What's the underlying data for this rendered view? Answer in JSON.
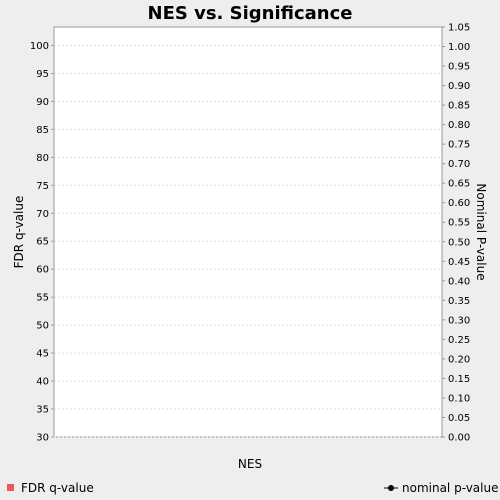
{
  "chart_data": {
    "type": "scatter",
    "title": "NES vs. Significance",
    "xlabel": "NES",
    "ylabel_left": "FDR q-value",
    "ylabel_right": "Nominal P-value",
    "y_left_ticks": [
      "30",
      "35",
      "40",
      "45",
      "50",
      "55",
      "60",
      "65",
      "70",
      "75",
      "80",
      "85",
      "90",
      "95",
      "100"
    ],
    "y_right_ticks": [
      "0.00",
      "0.05",
      "0.10",
      "0.15",
      "0.20",
      "0.25",
      "0.30",
      "0.35",
      "0.40",
      "0.45",
      "0.50",
      "0.55",
      "0.60",
      "0.65",
      "0.70",
      "0.75",
      "0.80",
      "0.85",
      "0.90",
      "0.95",
      "1.00",
      "1.05"
    ],
    "y_left_range": [
      30,
      103.3
    ],
    "y_right_range": [
      0,
      1.05
    ],
    "grid": true,
    "series": [
      {
        "name": "FDR q-value",
        "color": "#e85a5a",
        "marker": "square",
        "values": []
      },
      {
        "name": "nominal p-value",
        "color": "#000000",
        "marker": "circle-line",
        "values": []
      }
    ],
    "legend_position": "bottom"
  }
}
